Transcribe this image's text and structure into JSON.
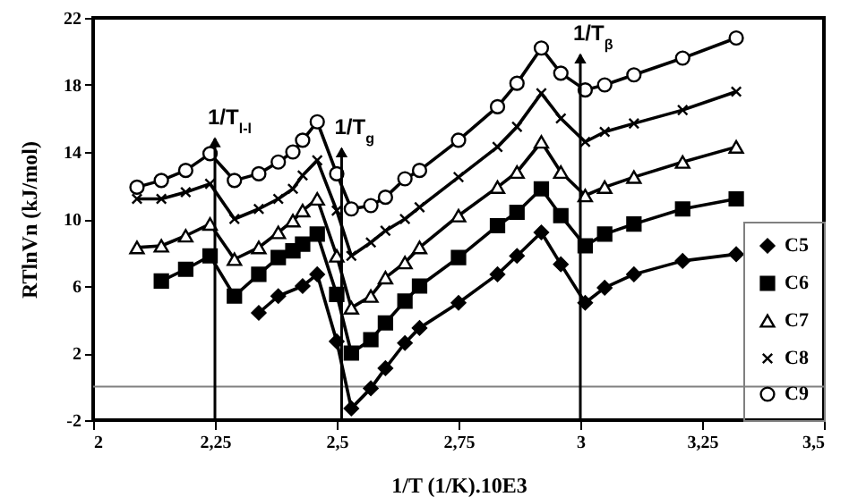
{
  "chart_data": {
    "type": "line",
    "xlabel": "1/T (1/K).10E3",
    "ylabel": "RTlnVn (kJ/mol)",
    "x": [
      2.09,
      2.14,
      2.19,
      2.24,
      2.29,
      2.34,
      2.38,
      2.41,
      2.43,
      2.46,
      2.5,
      2.53,
      2.57,
      2.6,
      2.64,
      2.67,
      2.75,
      2.83,
      2.87,
      2.92,
      2.96,
      3.01,
      3.05,
      3.11,
      3.21,
      3.32
    ],
    "series": [
      {
        "name": "C5",
        "color": "#000000",
        "marker": "diamond",
        "values": [
          null,
          null,
          null,
          null,
          null,
          4.4,
          5.4,
          null,
          6.0,
          6.7,
          2.7,
          -1.3,
          -0.1,
          1.1,
          2.6,
          3.5,
          5.0,
          6.7,
          7.8,
          9.2,
          7.3,
          5.0,
          5.9,
          6.7,
          7.5,
          7.9
        ]
      },
      {
        "name": "C6",
        "color": "#000000",
        "marker": "square",
        "values": [
          null,
          6.3,
          7.0,
          7.8,
          5.4,
          6.7,
          7.7,
          8.1,
          8.5,
          9.1,
          5.5,
          2.0,
          2.8,
          3.8,
          5.1,
          6.0,
          7.7,
          9.6,
          10.4,
          11.8,
          10.2,
          8.4,
          9.1,
          9.7,
          10.6,
          11.2
        ]
      },
      {
        "name": "C7",
        "color": "#000000",
        "marker": "triangle",
        "values": [
          8.3,
          8.4,
          9.0,
          9.7,
          7.6,
          8.3,
          9.2,
          9.9,
          10.5,
          11.2,
          7.8,
          4.7,
          5.4,
          6.5,
          7.4,
          8.3,
          10.2,
          11.9,
          12.8,
          14.6,
          12.8,
          11.4,
          11.9,
          12.5,
          13.4,
          14.3
        ]
      },
      {
        "name": "C8",
        "color": "#000000",
        "marker": "cross",
        "values": [
          11.2,
          11.2,
          11.6,
          12.1,
          10.0,
          10.6,
          11.2,
          11.8,
          12.6,
          13.5,
          10.5,
          7.8,
          8.6,
          9.3,
          10.0,
          10.7,
          12.5,
          14.3,
          15.5,
          17.5,
          16.0,
          14.6,
          15.2,
          15.7,
          16.5,
          17.6
        ]
      },
      {
        "name": "C9",
        "color": "#000000",
        "marker": "circle",
        "values": [
          11.9,
          12.3,
          12.9,
          13.9,
          12.3,
          12.7,
          13.4,
          14.0,
          14.7,
          15.8,
          12.7,
          10.6,
          10.8,
          11.3,
          12.4,
          12.9,
          14.7,
          16.7,
          18.1,
          20.2,
          18.7,
          17.7,
          18.0,
          18.6,
          19.6,
          20.8
        ]
      }
    ],
    "xlim": [
      2,
      3.5
    ],
    "xticks": [
      2,
      {
        "value": 2.25,
        "label": "2,25"
      },
      {
        "value": 2.5,
        "label": "2,5"
      },
      {
        "value": 2.75,
        "label": "2,75"
      },
      3,
      {
        "value": 3.25,
        "label": "3,25"
      },
      {
        "value": 3.5,
        "label": "3,5"
      }
    ],
    "ylim": [
      -2,
      22
    ],
    "yticks": [
      -2,
      2,
      6,
      10,
      14,
      18,
      22
    ],
    "ref_lines": [
      {
        "axis": "y",
        "value": 0,
        "color": "#808080"
      }
    ],
    "annotations": [
      {
        "text": "1/T$_{l-l}$",
        "x": 2.25,
        "y": 14.8
      },
      {
        "text": "1/T$_{g}$",
        "x": 2.51,
        "y": 14.2
      },
      {
        "text": "1/T$_{β}$",
        "x": 3.0,
        "y": 19.8
      }
    ],
    "legend": "bottom right"
  }
}
